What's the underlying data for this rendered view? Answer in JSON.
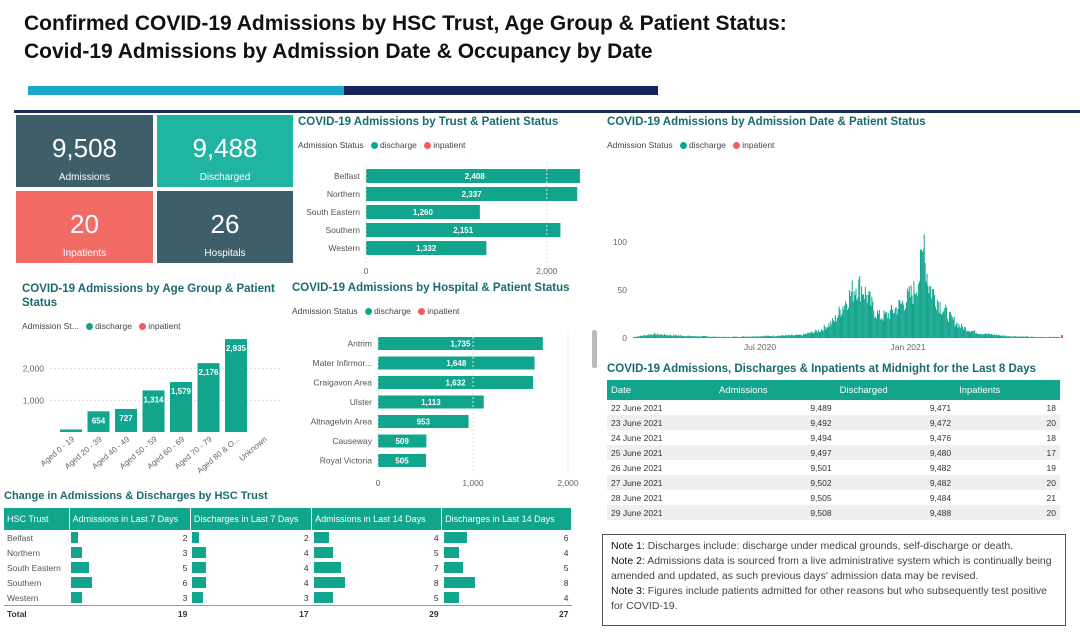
{
  "header": {
    "title_line1": "Confirmed COVID-19 Admissions by HSC Trust, Age Group & Patient Status:",
    "title_line2": "Covid-19 Admissions by Admission Date & Occupancy by Date"
  },
  "colors": {
    "discharge": "#12a58d",
    "inpatient": "#f05b5b",
    "kpi_dark": "#3e5e69",
    "kpi_teal": "#1fb5a2",
    "kpi_red": "#f36b65"
  },
  "kpis": [
    {
      "value": "9,508",
      "label": "Admissions"
    },
    {
      "value": "9,488",
      "label": "Discharged"
    },
    {
      "value": "20",
      "label": "Inpatients"
    },
    {
      "value": "26",
      "label": "Hospitals"
    }
  ],
  "legend": {
    "title": "Admission Status",
    "title_short": "Admission St...",
    "discharge": "discharge",
    "inpatient": "inpatient"
  },
  "chart_data": [
    {
      "type": "bar",
      "orientation": "horizontal",
      "title": "COVID-19 Admissions by Trust & Patient Status",
      "categories": [
        "Belfast",
        "Northern",
        "South Eastern",
        "Southern",
        "Western"
      ],
      "series": [
        {
          "name": "discharge",
          "values": [
            2408,
            2337,
            1260,
            2151,
            1332
          ]
        }
      ],
      "labels": [
        "2,408",
        "2,337",
        "1,260",
        "2,151",
        "1,332"
      ],
      "xticks": [
        "0",
        "2,000"
      ],
      "xlim": [
        0,
        2600
      ]
    },
    {
      "type": "bar",
      "title": "COVID-19 Admissions by Age Group & Patient Status",
      "categories": [
        "Aged 0 - 19",
        "Aged 20 - 39",
        "Aged 40 - 49",
        "Aged 50 - 59",
        "Aged 60 - 69",
        "Aged 70 - 79",
        "Aged 80 & O...",
        "Unknown"
      ],
      "series": [
        {
          "name": "discharge",
          "values": [
            80,
            654,
            727,
            1314,
            1579,
            2176,
            2935,
            0
          ]
        }
      ],
      "labels": [
        "",
        "654",
        "727",
        "1,314",
        "1,579",
        "2,176",
        "2,935",
        ""
      ],
      "yticks": [
        "1,000",
        "2,000"
      ],
      "ylim": [
        0,
        3000
      ]
    },
    {
      "type": "bar",
      "orientation": "horizontal",
      "title": "COVID-19 Admissions by Hospital & Patient Status",
      "categories": [
        "Antrim",
        "Mater Infirmor...",
        "Craigavon Area",
        "Ulster",
        "Altnagelvin Area",
        "Causeway",
        "Royal Victoria"
      ],
      "series": [
        {
          "name": "discharge",
          "values": [
            1735,
            1648,
            1632,
            1113,
            953,
            509,
            505
          ]
        }
      ],
      "labels": [
        "1,735",
        "1,648",
        "1,632",
        "1,113",
        "953",
        "509",
        "505"
      ],
      "xticks": [
        "0",
        "1,000",
        "2,000"
      ],
      "xlim": [
        0,
        2000
      ]
    },
    {
      "type": "bar",
      "title": "COVID-19 Admissions by Admission Date & Patient Status",
      "x_range": [
        "2020-03",
        "2021-06"
      ],
      "xticks": [
        "Jul 2020",
        "Jan 2021"
      ],
      "yticks": [
        "0",
        "50",
        "100"
      ],
      "ylim": [
        0,
        110
      ],
      "series": [
        {
          "name": "discharge",
          "description_points": [
            [
              0,
              1
            ],
            [
              20,
              4
            ],
            [
              40,
              3
            ],
            [
              60,
              2
            ],
            [
              100,
              1
            ],
            [
              140,
              2
            ],
            [
              180,
              3
            ],
            [
              200,
              8
            ],
            [
              215,
              18
            ],
            [
              225,
              35
            ],
            [
              232,
              45
            ],
            [
              238,
              55
            ],
            [
              245,
              52
            ],
            [
              252,
              40
            ],
            [
              258,
              28
            ],
            [
              264,
              22
            ],
            [
              272,
              24
            ],
            [
              280,
              30
            ],
            [
              290,
              38
            ],
            [
              300,
              48
            ],
            [
              306,
              65
            ],
            [
              310,
              90
            ],
            [
              312,
              80
            ],
            [
              316,
              55
            ],
            [
              322,
              45
            ],
            [
              330,
              32
            ],
            [
              340,
              20
            ],
            [
              350,
              12
            ],
            [
              360,
              8
            ],
            [
              370,
              5
            ],
            [
              380,
              4
            ],
            [
              400,
              2
            ],
            [
              430,
              1
            ],
            [
              460,
              1
            ]
          ],
          "peak": 108
        }
      ]
    }
  ],
  "occupancy": {
    "title": "COVID-19 Admissions, Discharges & Inpatients at Midnight for the Last 8 Days",
    "columns": [
      "Date",
      "Admissions",
      "Discharged",
      "Inpatients"
    ],
    "rows": [
      [
        "22 June 2021",
        "9,489",
        "9,471",
        "18"
      ],
      [
        "23 June 2021",
        "9,492",
        "9,472",
        "20"
      ],
      [
        "24 June 2021",
        "9,494",
        "9,476",
        "18"
      ],
      [
        "25 June 2021",
        "9,497",
        "9,480",
        "17"
      ],
      [
        "26 June 2021",
        "9,501",
        "9,482",
        "19"
      ],
      [
        "27 June 2021",
        "9,502",
        "9,482",
        "20"
      ],
      [
        "28 June 2021",
        "9,505",
        "9,484",
        "21"
      ],
      [
        "29 June 2021",
        "9,508",
        "9,488",
        "20"
      ]
    ]
  },
  "change": {
    "title": "Change in Admissions & Discharges by HSC Trust",
    "columns": [
      "HSC Trust",
      "Admissions in Last 7 Days",
      "Discharges in Last 7 Days",
      "Admissions in Last 14 Days",
      "Discharges in Last 14 Days"
    ],
    "rows": [
      [
        "Belfast",
        2,
        2,
        4,
        6
      ],
      [
        "Northern",
        3,
        4,
        5,
        4
      ],
      [
        "South Eastern",
        5,
        4,
        7,
        5
      ],
      [
        "Southern",
        6,
        4,
        8,
        8
      ],
      [
        "Western",
        3,
        3,
        5,
        4
      ]
    ],
    "total": [
      "Total",
      19,
      17,
      29,
      27
    ]
  },
  "notes": [
    {
      "label": "Note 1:",
      "text": " Discharges include: discharge under medical grounds, self-discharge or death."
    },
    {
      "label": "Note 2:",
      "text": " Admissions data is sourced from a live administrative system which is continually being amended and updated, as such previous days' admission data may be revised."
    },
    {
      "label": "Note 3:",
      "text": " Figures include patients admitted for other reasons but who subsequently test positive for COVID-19."
    }
  ]
}
